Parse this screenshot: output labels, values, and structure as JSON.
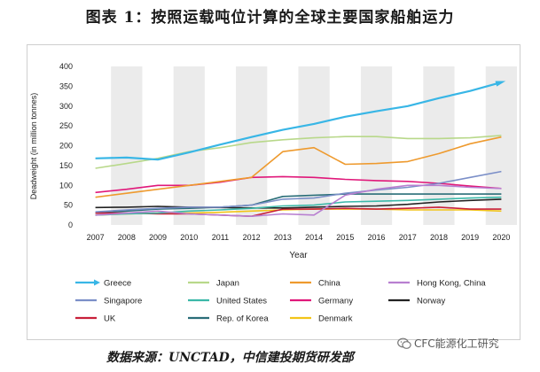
{
  "title": "图表 1：按照运载吨位计算的全球主要国家船舶运力",
  "source": "数据来源：UNCTAD，中信建投期货研发部",
  "watermark": "CFC能源化工研究",
  "chart_data": {
    "type": "line",
    "ylabel": "Deadweight (in million tonnes)",
    "xlabel": "Year",
    "x": [
      "2007",
      "2008",
      "2009",
      "2010",
      "2011",
      "2012",
      "2013",
      "2014",
      "2015",
      "2016",
      "2017",
      "2018",
      "2019",
      "2020"
    ],
    "ylim": [
      0,
      400
    ],
    "yticks": [
      0,
      50,
      100,
      150,
      200,
      250,
      300,
      350,
      400
    ],
    "legend_position": "bottom",
    "series": [
      {
        "name": "Greece",
        "color": "#38b6e6",
        "values": [
          168,
          170,
          165,
          183,
          203,
          222,
          240,
          255,
          273,
          287,
          300,
          320,
          338,
          360
        ]
      },
      {
        "name": "Japan",
        "color": "#b8d88a",
        "values": [
          143,
          155,
          168,
          185,
          195,
          208,
          215,
          220,
          223,
          223,
          218,
          218,
          220,
          226
        ]
      },
      {
        "name": "China",
        "color": "#ee9a2e",
        "values": [
          70,
          80,
          90,
          100,
          110,
          120,
          185,
          195,
          153,
          155,
          160,
          180,
          205,
          222
        ]
      },
      {
        "name": "Hong Kong, China",
        "color": "#b87fd0",
        "values": [
          25,
          30,
          35,
          28,
          25,
          22,
          28,
          25,
          75,
          90,
          100,
          100,
          95,
          92
        ]
      },
      {
        "name": "Singapore",
        "color": "#7b8fc8",
        "values": [
          33,
          38,
          42,
          45,
          45,
          50,
          65,
          68,
          80,
          88,
          95,
          105,
          120,
          135
        ]
      },
      {
        "name": "United States",
        "color": "#3bb8a8",
        "values": [
          25,
          28,
          30,
          35,
          38,
          42,
          48,
          50,
          58,
          60,
          62,
          65,
          68,
          70
        ]
      },
      {
        "name": "Germany",
        "color": "#e0187a",
        "values": [
          82,
          90,
          100,
          100,
          108,
          120,
          122,
          120,
          115,
          112,
          110,
          105,
          98,
          92
        ]
      },
      {
        "name": "Norway",
        "color": "#222222",
        "values": [
          44,
          45,
          47,
          45,
          44,
          43,
          43,
          45,
          47,
          48,
          52,
          58,
          62,
          65
        ]
      },
      {
        "name": "UK",
        "color": "#c8203a",
        "values": [
          30,
          30,
          28,
          28,
          25,
          22,
          40,
          40,
          42,
          40,
          42,
          45,
          40,
          40
        ]
      },
      {
        "name": "Rep. of Korea",
        "color": "#2a6e78",
        "values": [
          30,
          35,
          40,
          42,
          45,
          50,
          72,
          75,
          78,
          78,
          78,
          78,
          78,
          78
        ]
      },
      {
        "name": "Denmark",
        "color": "#f2c418",
        "values": [
          25,
          28,
          30,
          30,
          32,
          35,
          38,
          40,
          40,
          40,
          38,
          38,
          38,
          35
        ]
      }
    ]
  }
}
